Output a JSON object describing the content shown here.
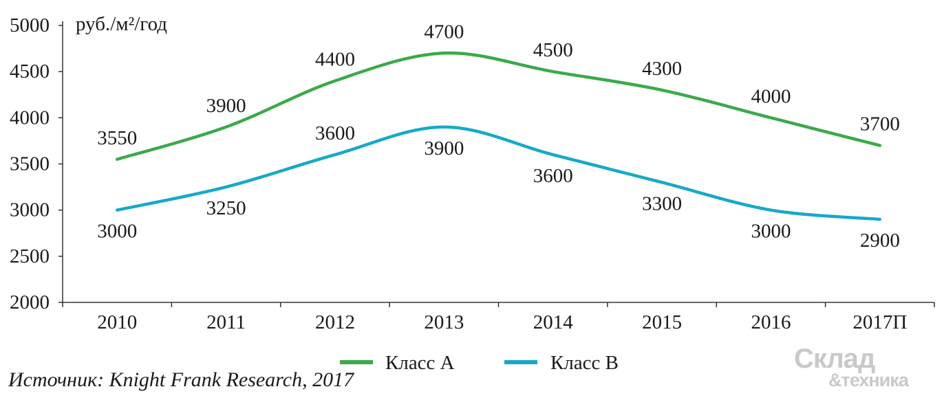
{
  "chart_data": {
    "type": "line",
    "unit_label": "руб./м²/год",
    "categories": [
      "2010",
      "2011",
      "2012",
      "2013",
      "2014",
      "2015",
      "2016",
      "2017П"
    ],
    "ylim": [
      2000,
      5000
    ],
    "yticks": [
      "2000",
      "2500",
      "3000",
      "3500",
      "4000",
      "4500",
      "5000"
    ],
    "grid": false,
    "legend_position": "bottom",
    "series": [
      {
        "name": "Класс А",
        "color": "#3aaa48",
        "values": [
          3550,
          3900,
          4400,
          4700,
          4500,
          4300,
          4000,
          3700
        ]
      },
      {
        "name": "Класс В",
        "color": "#16a9c9",
        "values": [
          3000,
          3250,
          3600,
          3900,
          3600,
          3300,
          3000,
          2900
        ]
      }
    ]
  },
  "source": "Источник: Knight Frank Research, 2017",
  "logo": {
    "line1": "Склад",
    "line2": "&техника"
  }
}
